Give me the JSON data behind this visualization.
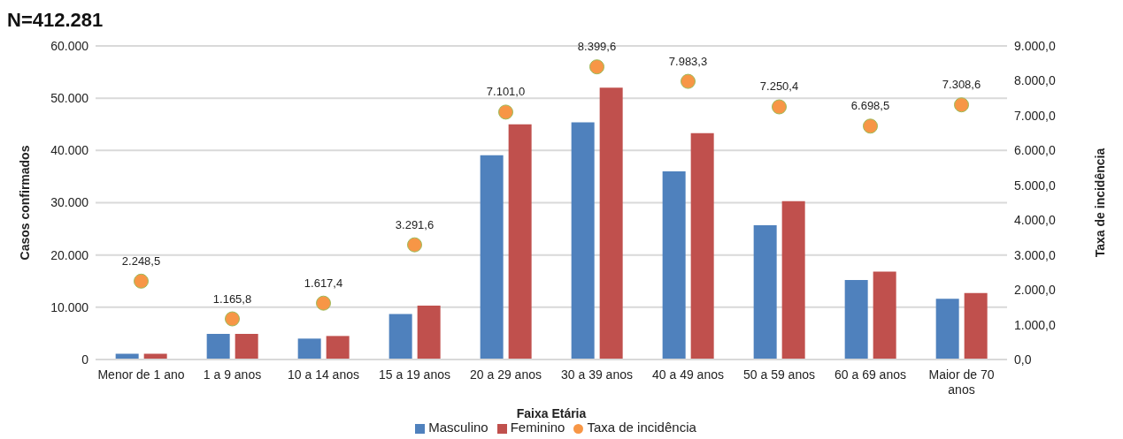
{
  "chart_data": {
    "type": "bar",
    "title": "N=412.281",
    "xlabel": "Faixa Etária",
    "ylabel": "Casos confirmados",
    "y2label": "Taxa de incidência",
    "categories": [
      "Menor de 1 ano",
      "1 a 9 anos",
      "10 a 14 anos",
      "15 a 19 anos",
      "20 a 29 anos",
      "30 a 39 anos",
      "40 a 49 anos",
      "50 a 59 anos",
      "60 a 69 anos",
      "Maior de 70 anos"
    ],
    "series": [
      {
        "name": "Masculino",
        "color": "#4f81bd",
        "values": [
          1100,
          4900,
          4000,
          8700,
          39100,
          45400,
          36000,
          25700,
          15200,
          11600
        ]
      },
      {
        "name": "Feminino",
        "color": "#c0504d",
        "values": [
          1100,
          4900,
          4500,
          10300,
          45000,
          52000,
          43300,
          30300,
          16800,
          12700
        ]
      },
      {
        "name": "Taxa de incidência",
        "type": "scatter",
        "axis": "y2",
        "color": "#f79646",
        "marker": "circle",
        "values": [
          2248.5,
          1165.8,
          1617.4,
          3291.6,
          7101.0,
          8399.6,
          7983.3,
          7250.4,
          6698.5,
          7308.6
        ],
        "value_labels": [
          "2.248,5",
          "1.165,8",
          "1.617,4",
          "3.291,6",
          "7.101,0",
          "8.399,6",
          "7.983,3",
          "7.250,4",
          "6.698,5",
          "7.308,6"
        ]
      }
    ],
    "ylim": [
      0,
      60000
    ],
    "yticks": [
      0,
      {
        "value": 10000,
        "label": "10.000"
      },
      {
        "value": 20000,
        "label": "20.000"
      },
      {
        "value": 30000,
        "label": "30.000"
      },
      {
        "value": 40000,
        "label": "40.000"
      },
      {
        "value": 50000,
        "label": "50.000"
      },
      {
        "value": 60000,
        "label": "60.000"
      }
    ],
    "y2lim": [
      0,
      9000
    ],
    "y2ticks": [
      {
        "value": 0,
        "label": "0,0"
      },
      {
        "value": 1000,
        "label": "1.000,0"
      },
      {
        "value": 2000,
        "label": "2.000,0"
      },
      {
        "value": 3000,
        "label": "3.000,0"
      },
      {
        "value": 4000,
        "label": "4.000,0"
      },
      {
        "value": 5000,
        "label": "5.000,0"
      },
      {
        "value": 6000,
        "label": "6.000,0"
      },
      {
        "value": 7000,
        "label": "7.000,0"
      },
      {
        "value": 8000,
        "label": "8.000,0"
      },
      {
        "value": 9000,
        "label": "9.000,0"
      }
    ],
    "grid": "y",
    "legend": "bottom"
  }
}
